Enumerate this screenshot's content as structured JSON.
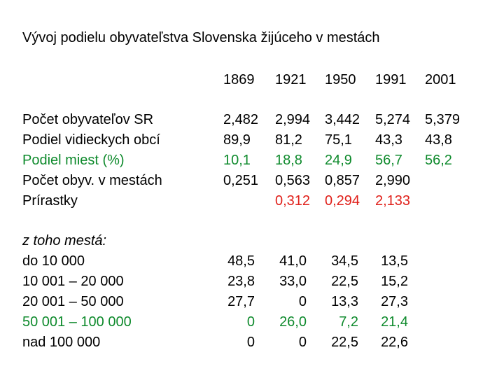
{
  "title": "Vývoj podielu obyvateľstva Slovenska žijúceho v mestách",
  "colors": {
    "text": "#000000",
    "green": "#0e8a2c",
    "red": "#e0201a"
  },
  "years": [
    "1869",
    "1921",
    "1950",
    "1991",
    "2001"
  ],
  "table1": {
    "row_labels": [
      "Počet obyvateľov SR",
      "Podiel vidieckych obcí",
      "Podiel miest  (%)",
      "Počet obyv. v mestách",
      "Prírastky"
    ],
    "rows": [
      [
        "2,482",
        "2,994",
        "3,442",
        "5,274",
        "5,379"
      ],
      [
        "89,9",
        "81,2",
        "75,1",
        "43,3",
        "43,8"
      ],
      [
        "10,1",
        "18,8",
        "24,9",
        "56,7",
        "56,2"
      ],
      [
        "0,251",
        "0,563",
        "0,857",
        "2,990",
        ""
      ],
      [
        "",
        "0,312",
        "0,294",
        "2,133",
        ""
      ]
    ]
  },
  "table2": {
    "heading": "z toho mestá:",
    "row_labels": [
      "do 10 000",
      "10 001 – 20 000",
      "20 001 – 50 000",
      "50 001 – 100 000",
      "nad 100 000"
    ],
    "rows": [
      [
        "48,5",
        "41,0",
        "34,5",
        "13,5"
      ],
      [
        "23,8",
        "33,0",
        "22,5",
        "15,2"
      ],
      [
        "27,7",
        "0",
        "13,3",
        "27,3"
      ],
      [
        "0",
        "26,0",
        "7,2",
        "21,4"
      ],
      [
        "0",
        "0",
        "22,5",
        "22,6"
      ]
    ]
  }
}
